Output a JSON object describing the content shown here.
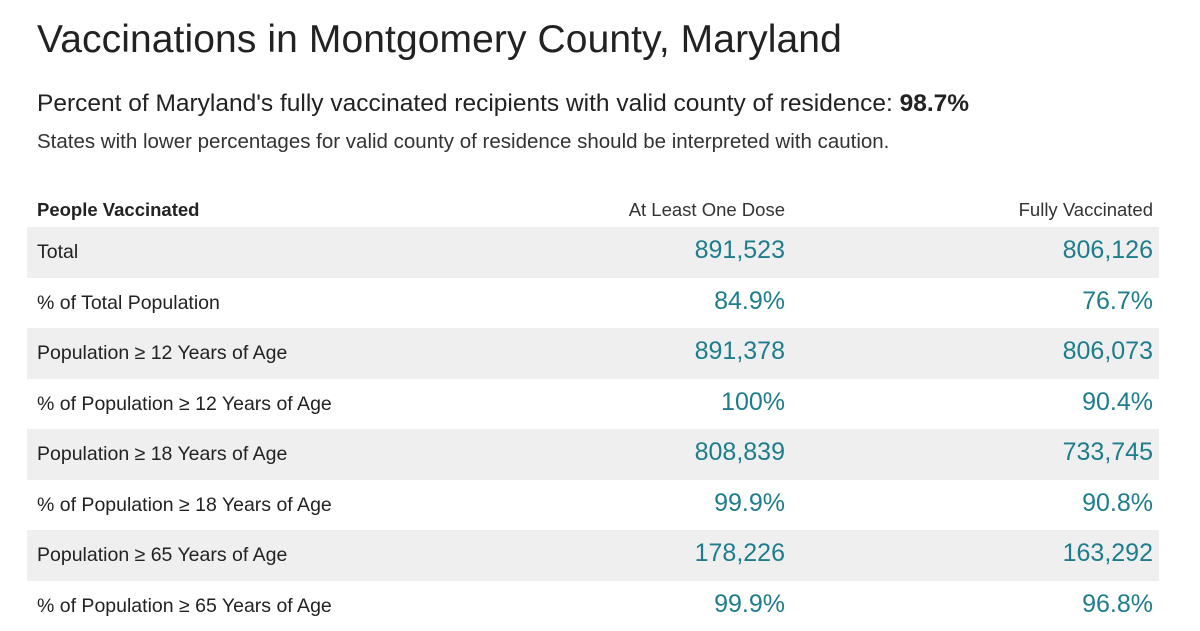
{
  "header": {
    "title": "Vaccinations in Montgomery County, Maryland",
    "subtitle_text": "Percent of Maryland's fully vaccinated recipients with valid county of residence: ",
    "subtitle_value": "98.7%",
    "caution": "States with lower percentages for valid county of residence should be interpreted with caution."
  },
  "table": {
    "columns": [
      "People Vaccinated",
      "At Least One Dose",
      "Fully Vaccinated"
    ],
    "rows": [
      {
        "label": "Total",
        "at_least_one_dose": "891,523",
        "fully_vaccinated": "806,126"
      },
      {
        "label": "% of Total Population",
        "at_least_one_dose": "84.9%",
        "fully_vaccinated": "76.7%"
      },
      {
        "label": "Population ≥ 12 Years of Age",
        "at_least_one_dose": "891,378",
        "fully_vaccinated": "806,073"
      },
      {
        "label": "% of Population ≥ 12 Years of Age",
        "at_least_one_dose": "100%",
        "fully_vaccinated": "90.4%"
      },
      {
        "label": "Population ≥ 18 Years of Age",
        "at_least_one_dose": "808,839",
        "fully_vaccinated": "733,745"
      },
      {
        "label": "% of Population ≥ 18 Years of Age",
        "at_least_one_dose": "99.9%",
        "fully_vaccinated": "90.8%"
      },
      {
        "label": "Population ≥ 65 Years of Age",
        "at_least_one_dose": "178,226",
        "fully_vaccinated": "163,292"
      },
      {
        "label": "% of Population ≥ 65 Years of Age",
        "at_least_one_dose": "99.9%",
        "fully_vaccinated": "96.8%"
      }
    ]
  },
  "colors": {
    "value_teal": "#1e7d8c",
    "row_shade": "#efefef",
    "text": "#222222"
  }
}
